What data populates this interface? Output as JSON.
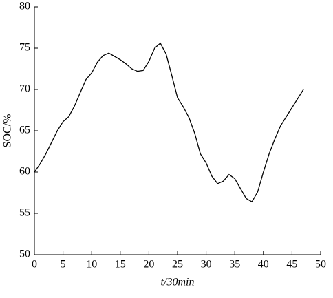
{
  "chart_data": {
    "type": "line",
    "xlabel": "t/30min",
    "ylabel": "SOC/%",
    "x": [
      0,
      1,
      2,
      3,
      4,
      5,
      6,
      7,
      8,
      9,
      10,
      11,
      12,
      13,
      14,
      15,
      16,
      17,
      18,
      19,
      20,
      21,
      22,
      23,
      24,
      25,
      26,
      27,
      28,
      29,
      30,
      31,
      32,
      33,
      34,
      35,
      36,
      37,
      38,
      39,
      40,
      41,
      42,
      43,
      44,
      45,
      46,
      47
    ],
    "series": [
      {
        "name": "SOC",
        "color": "#000000",
        "values": [
          60,
          61,
          62.2,
          63.6,
          65,
          66.1,
          66.7,
          68,
          69.6,
          71.2,
          72,
          73.3,
          74.1,
          74.4,
          74,
          73.6,
          73.1,
          72.5,
          72.2,
          72.3,
          73.4,
          75,
          75.6,
          74.3,
          71.7,
          69,
          67.9,
          66.6,
          64.7,
          62.2,
          61.1,
          59.5,
          58.6,
          58.9,
          59.7,
          59.2,
          58,
          56.8,
          56.4,
          57.6,
          60,
          62.2,
          64,
          65.6,
          66.7,
          67.8,
          68.9,
          70
        ]
      }
    ],
    "xlim": [
      0,
      50
    ],
    "xticks": [
      0,
      5,
      10,
      15,
      20,
      25,
      30,
      35,
      40,
      45,
      50
    ],
    "ylim": [
      50,
      80
    ],
    "yticks": [
      50,
      55,
      60,
      65,
      70,
      75,
      80
    ]
  }
}
